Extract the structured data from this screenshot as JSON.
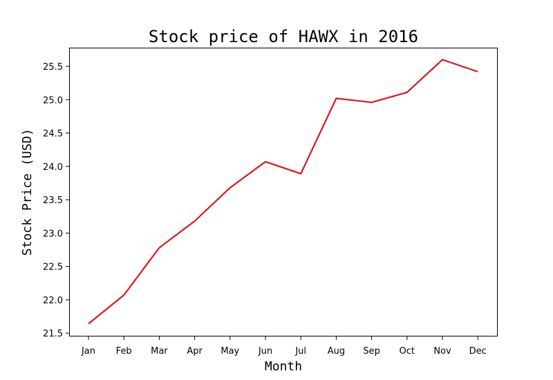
{
  "chart_data": {
    "type": "line",
    "title": "Stock price of HAWX in 2016",
    "xlabel": "Month",
    "ylabel": "Stock Price (USD)",
    "categories": [
      "Jan",
      "Feb",
      "Mar",
      "Apr",
      "May",
      "Jun",
      "Jul",
      "Aug",
      "Sep",
      "Oct",
      "Nov",
      "Dec"
    ],
    "series": [
      {
        "color": "#e0131a",
        "values": [
          21.64,
          22.07,
          22.78,
          23.18,
          23.68,
          24.07,
          23.89,
          25.02,
          24.96,
          25.11,
          25.6,
          25.42
        ]
      }
    ],
    "ylim": [
      21.45,
      25.78
    ],
    "yticks": [
      "21.5",
      "22.0",
      "22.5",
      "23.0",
      "23.5",
      "24.0",
      "24.5",
      "25.0",
      "25.5"
    ],
    "grid": false,
    "legend": "none"
  }
}
